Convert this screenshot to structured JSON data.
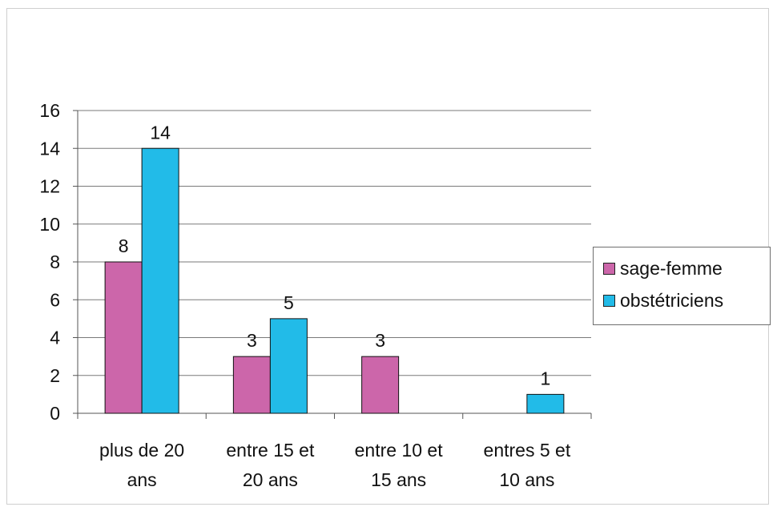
{
  "chart_data": {
    "type": "bar",
    "title": "",
    "xlabel": "",
    "ylabel": "",
    "categories": [
      [
        "plus de 20",
        "ans"
      ],
      [
        "entre 15 et",
        "20 ans"
      ],
      [
        "entre 10 et",
        "15 ans"
      ],
      [
        "entres 5 et",
        "10 ans"
      ]
    ],
    "series": [
      {
        "name": "sage-femme",
        "color": "#cc66aa",
        "values": [
          8,
          3,
          3,
          null
        ],
        "data_labels": [
          "8",
          "3",
          "3",
          ""
        ]
      },
      {
        "name": "obstétriciens",
        "color": "#22bbe8",
        "values": [
          14,
          5,
          null,
          1
        ],
        "data_labels": [
          "14",
          "5",
          "",
          "1"
        ]
      }
    ],
    "ylim": [
      0,
      16
    ],
    "yticks": [
      "0",
      "2",
      "4",
      "6",
      "8",
      "10",
      "12",
      "14",
      "16"
    ],
    "grid": true,
    "legend_position": "right"
  }
}
